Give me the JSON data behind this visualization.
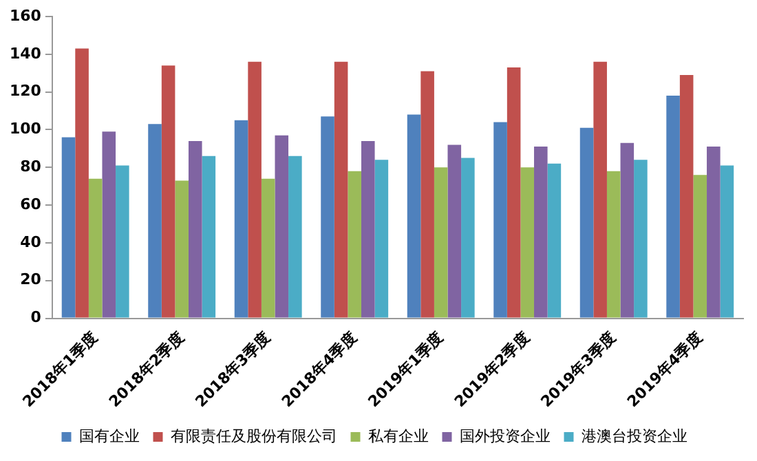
{
  "chart_data": {
    "type": "bar",
    "categories": [
      "2018年1季度",
      "2018年2季度",
      "2018年3季度",
      "2018年4季度",
      "2019年1季度",
      "2019年2季度",
      "2019年3季度",
      "2019年4季度"
    ],
    "series": [
      {
        "name": "国有企业",
        "color": "#4f81bd",
        "values": [
          96,
          103,
          105,
          107,
          108,
          104,
          101,
          118
        ]
      },
      {
        "name": "有限责任及股份有限公司",
        "color": "#c0504d",
        "values": [
          143,
          134,
          136,
          136,
          131,
          133,
          136,
          129
        ]
      },
      {
        "name": "私有企业",
        "color": "#9bbb59",
        "values": [
          74,
          73,
          74,
          78,
          80,
          80,
          78,
          76
        ]
      },
      {
        "name": "国外投资企业",
        "color": "#8064a2",
        "values": [
          99,
          94,
          97,
          94,
          92,
          91,
          93,
          91
        ]
      },
      {
        "name": "港澳台投资企业",
        "color": "#4bacc6",
        "values": [
          81,
          86,
          86,
          84,
          85,
          82,
          84,
          81
        ]
      }
    ],
    "ylim": [
      0,
      160
    ],
    "yticks": [
      0,
      20,
      40,
      60,
      80,
      100,
      120,
      140,
      160
    ],
    "grid": false,
    "legend": "bottom"
  }
}
